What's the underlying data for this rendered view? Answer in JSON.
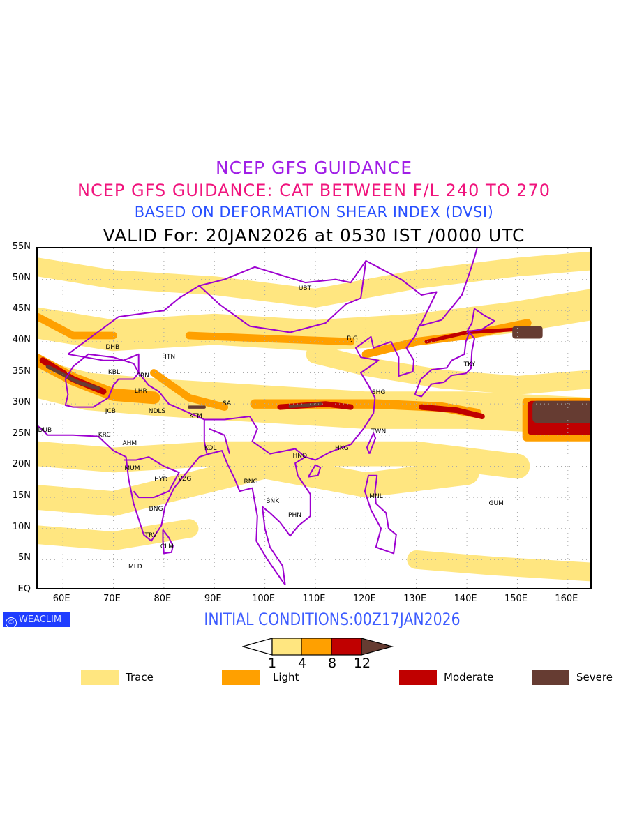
{
  "titles": {
    "line1": "NCEP GFS GUIDANCE",
    "line2": "NCEP GFS GUIDANCE: CAT BETWEEN F/L 240 TO 270",
    "line3": "BASED ON DEFORMATION SHEAR INDEX (DVSI)",
    "line4": "VALID For: 20JAN2026 at 0530 IST /0000 UTC"
  },
  "axes": {
    "lat_labels": [
      "55N",
      "50N",
      "45N",
      "40N",
      "35N",
      "30N",
      "25N",
      "20N",
      "15N",
      "10N",
      "5N",
      "EQ"
    ],
    "lon_labels": [
      "60E",
      "70E",
      "80E",
      "90E",
      "100E",
      "110E",
      "120E",
      "130E",
      "140E",
      "150E",
      "160E"
    ]
  },
  "map_data": {
    "lon_range": [
      55,
      165
    ],
    "lat_range": [
      0,
      55
    ],
    "cities": [
      {
        "name": "UBT",
        "lon": 108.2,
        "lat": 48.3
      },
      {
        "name": "BJG",
        "lon": 117.6,
        "lat": 40.2
      },
      {
        "name": "DHB",
        "lon": 70.1,
        "lat": 38.9
      },
      {
        "name": "HTN",
        "lon": 81.2,
        "lat": 37.3
      },
      {
        "name": "KBL",
        "lon": 70.4,
        "lat": 34.8
      },
      {
        "name": "SRN",
        "lon": 76.1,
        "lat": 34.3
      },
      {
        "name": "LHR",
        "lon": 75.7,
        "lat": 31.8
      },
      {
        "name": "JCB",
        "lon": 69.7,
        "lat": 28.6
      },
      {
        "name": "NDLS",
        "lon": 78.9,
        "lat": 28.6
      },
      {
        "name": "LSA",
        "lon": 92.4,
        "lat": 29.8
      },
      {
        "name": "KTM",
        "lon": 86.6,
        "lat": 27.8
      },
      {
        "name": "SHG",
        "lon": 122.8,
        "lat": 31.6
      },
      {
        "name": "TKY",
        "lon": 140.8,
        "lat": 36.1
      },
      {
        "name": "DUB",
        "lon": 56.7,
        "lat": 25.5
      },
      {
        "name": "KRC",
        "lon": 68.5,
        "lat": 24.7
      },
      {
        "name": "AHM",
        "lon": 73.5,
        "lat": 23.4
      },
      {
        "name": "TWN",
        "lon": 122.8,
        "lat": 25.3
      },
      {
        "name": "KOL",
        "lon": 89.5,
        "lat": 22.6
      },
      {
        "name": "HKG",
        "lon": 115.5,
        "lat": 22.6
      },
      {
        "name": "HNO",
        "lon": 107.2,
        "lat": 21.4
      },
      {
        "name": "MUM",
        "lon": 74.0,
        "lat": 19.4
      },
      {
        "name": "HYD",
        "lon": 79.7,
        "lat": 17.6
      },
      {
        "name": "VZG",
        "lon": 84.4,
        "lat": 17.7
      },
      {
        "name": "RNG",
        "lon": 97.5,
        "lat": 17.2
      },
      {
        "name": "BNK",
        "lon": 101.8,
        "lat": 14.1
      },
      {
        "name": "MNL",
        "lon": 122.3,
        "lat": 14.9
      },
      {
        "name": "GUM",
        "lon": 146.1,
        "lat": 13.8
      },
      {
        "name": "PHN",
        "lon": 106.2,
        "lat": 11.9
      },
      {
        "name": "BNG",
        "lon": 78.7,
        "lat": 12.9
      },
      {
        "name": "TRV",
        "lon": 77.7,
        "lat": 8.6
      },
      {
        "name": "CLM",
        "lon": 80.9,
        "lat": 6.8
      },
      {
        "name": "MLD",
        "lon": 74.6,
        "lat": 3.6
      }
    ]
  },
  "footer": {
    "logo": "WEACLIM",
    "logo_symbol": "©",
    "initial_conditions": "INITIAL CONDITIONS:00Z17JAN2026"
  },
  "colorbar": {
    "thresholds": [
      "1",
      "4",
      "8",
      "12"
    ],
    "colors": [
      "#ffe680",
      "#ffa000",
      "#c00000",
      "#663c32"
    ]
  },
  "legend": [
    {
      "label": "Trace",
      "color": "#ffe680"
    },
    {
      "label": "Light",
      "color": "#ffa000"
    },
    {
      "label": "Moderate",
      "color": "#c00000"
    },
    {
      "label": "Severe",
      "color": "#663c32"
    }
  ],
  "colors": {
    "coast": "#9d00d0",
    "title1": "#a01ee6",
    "title2": "#f0147d",
    "title3": "#2850ff"
  }
}
